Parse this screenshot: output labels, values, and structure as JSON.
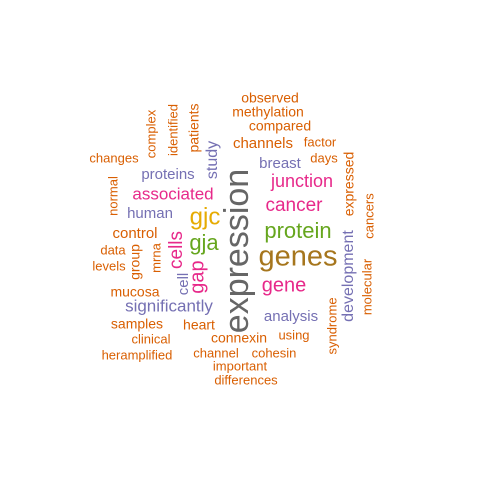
{
  "colors": {
    "orange": "#D95F02",
    "purple": "#7570B3",
    "magenta": "#E7298A",
    "green": "#66A61E",
    "gold": "#E6AB02",
    "brown": "#A6761D",
    "gray": "#666666"
  },
  "words": {
    "expression": {
      "text": "expression",
      "color": "gray"
    },
    "genes": {
      "text": "genes",
      "color": "brown"
    },
    "protein": {
      "text": "protein",
      "color": "green"
    },
    "gjc": {
      "text": "gjc",
      "color": "gold"
    },
    "gja": {
      "text": "gja",
      "color": "green"
    },
    "cancer": {
      "text": "cancer",
      "color": "magenta"
    },
    "junction": {
      "text": "junction",
      "color": "magenta"
    },
    "gene": {
      "text": "gene",
      "color": "magenta"
    },
    "associated": {
      "text": "associated",
      "color": "magenta"
    },
    "cells": {
      "text": "cells",
      "color": "magenta"
    },
    "gap": {
      "text": "gap",
      "color": "magenta"
    },
    "significantly": {
      "text": "significantly",
      "color": "purple"
    },
    "analysis": {
      "text": "analysis",
      "color": "purple"
    },
    "development": {
      "text": "development",
      "color": "purple"
    },
    "proteins": {
      "text": "proteins",
      "color": "purple"
    },
    "study": {
      "text": "study",
      "color": "purple"
    },
    "breast": {
      "text": "breast",
      "color": "purple"
    },
    "human": {
      "text": "human",
      "color": "purple"
    },
    "cell": {
      "text": "cell",
      "color": "purple"
    },
    "channels": {
      "text": "channels",
      "color": "orange"
    },
    "control": {
      "text": "control",
      "color": "orange"
    },
    "heart": {
      "text": "heart",
      "color": "orange"
    },
    "connexin": {
      "text": "connexin",
      "color": "orange"
    },
    "mucosa": {
      "text": "mucosa",
      "color": "orange"
    },
    "samples": {
      "text": "samples",
      "color": "orange"
    },
    "clinical": {
      "text": "clinical",
      "color": "orange"
    },
    "heramplified": {
      "text": "heramplified",
      "color": "orange"
    },
    "channel": {
      "text": "channel",
      "color": "orange"
    },
    "cohesin": {
      "text": "cohesin",
      "color": "orange"
    },
    "important": {
      "text": "important",
      "color": "orange"
    },
    "differences": {
      "text": "differences",
      "color": "orange"
    },
    "using": {
      "text": "using",
      "color": "orange"
    },
    "observed": {
      "text": "observed",
      "color": "orange"
    },
    "methylation": {
      "text": "methylation",
      "color": "orange"
    },
    "compared": {
      "text": "compared",
      "color": "orange"
    },
    "factor": {
      "text": "factor",
      "color": "orange"
    },
    "days": {
      "text": "days",
      "color": "orange"
    },
    "changes": {
      "text": "changes",
      "color": "orange"
    },
    "data": {
      "text": "data",
      "color": "orange"
    },
    "levels": {
      "text": "levels",
      "color": "orange"
    },
    "complex": {
      "text": "complex",
      "color": "orange"
    },
    "identified": {
      "text": "identified",
      "color": "orange"
    },
    "patients": {
      "text": "patients",
      "color": "orange"
    },
    "normal": {
      "text": "normal",
      "color": "orange"
    },
    "group": {
      "text": "group",
      "color": "orange"
    },
    "mrna": {
      "text": "mrna",
      "color": "orange"
    },
    "expressed": {
      "text": "expressed",
      "color": "orange"
    },
    "molecular": {
      "text": "molecular",
      "color": "orange"
    },
    "cancers": {
      "text": "cancers",
      "color": "orange"
    },
    "syndrome": {
      "text": "syndrome",
      "color": "orange"
    }
  }
}
